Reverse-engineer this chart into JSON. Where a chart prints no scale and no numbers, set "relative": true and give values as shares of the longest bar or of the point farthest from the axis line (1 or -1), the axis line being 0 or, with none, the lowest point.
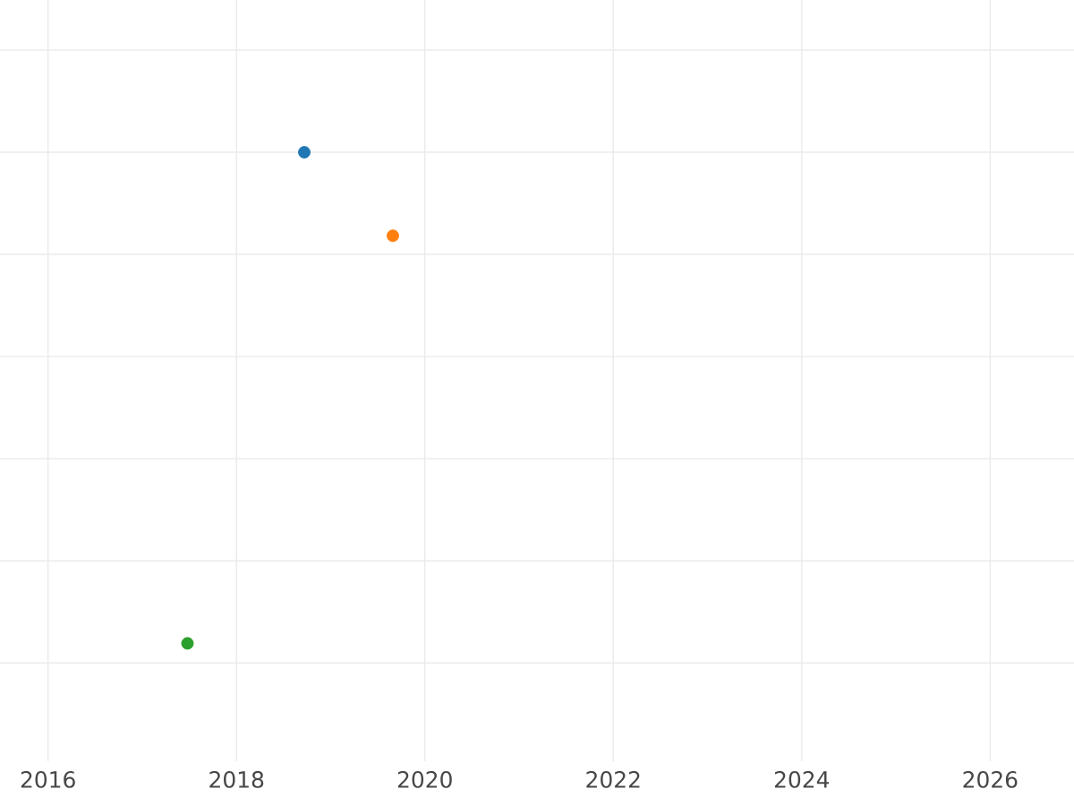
{
  "chart_data": {
    "type": "scatter",
    "relative": true,
    "x": [
      2018.72,
      2019.66,
      2017.48
    ],
    "values": [
      1,
      0.83,
      0
    ],
    "colors": [
      "#1f77b4",
      "#ff7f0e",
      "#2ca02c"
    ],
    "xlim": [
      2015.49,
      2026.89
    ],
    "xticks": [
      2016,
      2018,
      2020,
      2022,
      2024,
      2026
    ],
    "grid": true,
    "tick_labels": "x"
  }
}
